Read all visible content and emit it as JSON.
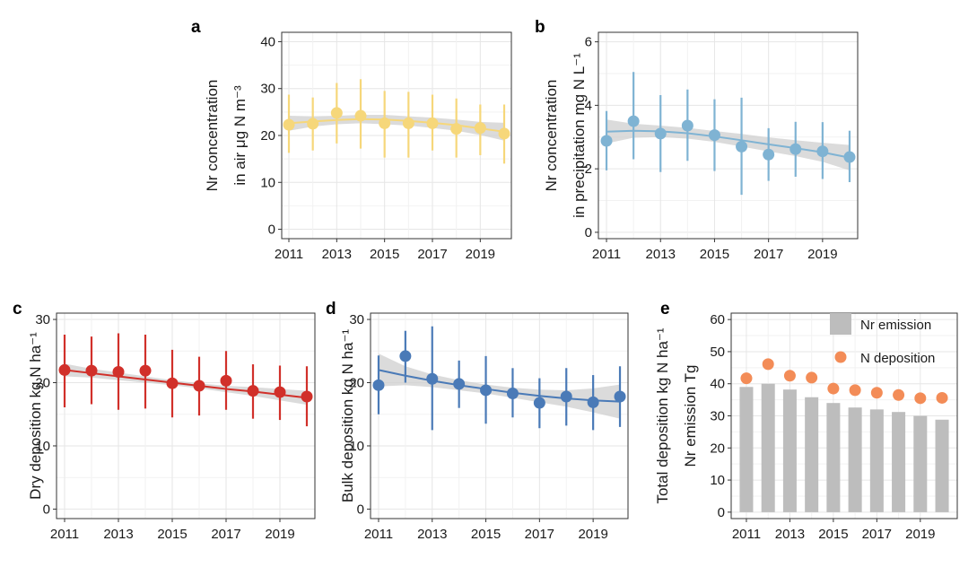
{
  "chart_data": [
    {
      "id": "a",
      "type": "scatter",
      "panel_label": "a",
      "ylabel_lines": [
        "Nr concentration",
        "in air   μg N m⁻³"
      ],
      "ylim": [
        -2,
        42
      ],
      "yticks": [
        0,
        10,
        20,
        30,
        40
      ],
      "x_ticks": [
        2011,
        2013,
        2015,
        2017,
        2019
      ],
      "xlim": [
        2010.7,
        2020.3
      ],
      "grid": true,
      "color": "#f6d77a",
      "band_color": "#cfcfcf",
      "x": [
        2011,
        2012,
        2013,
        2014,
        2015,
        2016,
        2017,
        2018,
        2019,
        2020
      ],
      "y": [
        22.3,
        22.5,
        24.8,
        24.2,
        22.6,
        22.6,
        22.6,
        21.4,
        21.6,
        20.4
      ],
      "err_low": [
        16.3,
        16.8,
        18.3,
        17.2,
        15.3,
        15.3,
        16.8,
        15.3,
        15.8,
        14.0
      ],
      "err_high": [
        28.7,
        28.1,
        31.2,
        32.0,
        29.5,
        29.3,
        28.7,
        27.9,
        26.6,
        26.6
      ],
      "fit": [
        22.6,
        23.0,
        23.3,
        23.5,
        23.4,
        23.1,
        22.7,
        22.2,
        21.5,
        20.8
      ],
      "fit_low": [
        21.0,
        21.9,
        22.4,
        22.6,
        22.4,
        22.1,
        21.6,
        21.0,
        20.1,
        18.9
      ],
      "fit_high": [
        24.2,
        24.1,
        24.2,
        24.4,
        24.4,
        24.1,
        23.8,
        23.4,
        22.9,
        22.7
      ]
    },
    {
      "id": "b",
      "type": "scatter",
      "panel_label": "b",
      "ylabel_lines": [
        "Nr concentration",
        "in precipitation   mg N L⁻¹"
      ],
      "ylim": [
        -0.2,
        6.3
      ],
      "yticks": [
        0,
        2,
        4,
        6
      ],
      "x_ticks": [
        2011,
        2013,
        2015,
        2017,
        2019
      ],
      "xlim": [
        2010.7,
        2020.3
      ],
      "grid": true,
      "color": "#7fb3d3",
      "band_color": "#cfcfcf",
      "x": [
        2011,
        2012,
        2013,
        2014,
        2015,
        2016,
        2017,
        2018,
        2019,
        2020
      ],
      "y": [
        2.88,
        3.5,
        3.11,
        3.36,
        3.06,
        2.7,
        2.45,
        2.62,
        2.55,
        2.37
      ],
      "err_low": [
        1.95,
        2.3,
        1.9,
        2.25,
        1.93,
        1.18,
        1.62,
        1.75,
        1.68,
        1.58
      ],
      "err_high": [
        3.82,
        5.05,
        4.32,
        4.5,
        4.19,
        4.24,
        3.28,
        3.48,
        3.47,
        3.2
      ],
      "fit": [
        3.17,
        3.2,
        3.18,
        3.12,
        3.02,
        2.9,
        2.77,
        2.65,
        2.52,
        2.35
      ],
      "fit_low": [
        2.8,
        2.98,
        3.0,
        2.95,
        2.85,
        2.7,
        2.55,
        2.4,
        2.22,
        1.95
      ],
      "fit_high": [
        3.55,
        3.42,
        3.36,
        3.29,
        3.19,
        3.1,
        2.99,
        2.9,
        2.82,
        2.75
      ]
    },
    {
      "id": "c",
      "type": "scatter",
      "panel_label": "c",
      "ylabel_lines": [
        "Dry deposition  kg N ha⁻¹"
      ],
      "ylim": [
        -1.5,
        31
      ],
      "yticks": [
        0,
        10,
        20,
        30
      ],
      "x_ticks": [
        2011,
        2013,
        2015,
        2017,
        2019
      ],
      "xlim": [
        2010.7,
        2020.3
      ],
      "grid": true,
      "color": "#d1302a",
      "band_color": "#cfcfcf",
      "x": [
        2011,
        2012,
        2013,
        2014,
        2015,
        2016,
        2017,
        2018,
        2019,
        2020
      ],
      "y": [
        22.0,
        21.9,
        21.7,
        21.9,
        19.9,
        19.5,
        20.3,
        18.7,
        18.5,
        17.8
      ],
      "err_low": [
        16.1,
        16.6,
        15.7,
        15.9,
        14.5,
        14.8,
        15.7,
        14.3,
        14.1,
        13.1
      ],
      "err_high": [
        27.6,
        27.3,
        27.8,
        27.6,
        25.2,
        24.1,
        25.0,
        22.9,
        22.7,
        22.6
      ],
      "fit": [
        22.0,
        21.5,
        21.0,
        20.5,
        20.0,
        19.5,
        19.0,
        18.6,
        18.1,
        17.6
      ],
      "fit_low": [
        21.0,
        20.8,
        20.4,
        20.0,
        19.6,
        19.1,
        18.5,
        17.9,
        17.2,
        16.5
      ],
      "fit_high": [
        23.0,
        22.2,
        21.6,
        21.0,
        20.4,
        19.9,
        19.5,
        19.3,
        19.0,
        18.7
      ]
    },
    {
      "id": "d",
      "type": "scatter",
      "panel_label": "d",
      "ylabel_lines": [
        "Bulk deposition  kg N ha⁻¹"
      ],
      "ylim": [
        -1.5,
        31
      ],
      "yticks": [
        0,
        10,
        20,
        30
      ],
      "x_ticks": [
        2011,
        2013,
        2015,
        2017,
        2019
      ],
      "xlim": [
        2010.7,
        2020.3
      ],
      "grid": true,
      "color": "#4a7ab7",
      "band_color": "#cfcfcf",
      "x": [
        2011,
        2012,
        2013,
        2014,
        2015,
        2016,
        2017,
        2018,
        2019,
        2020
      ],
      "y": [
        19.6,
        24.2,
        20.6,
        19.8,
        18.8,
        18.3,
        16.8,
        17.8,
        16.9,
        17.8
      ],
      "err_low": [
        15.0,
        20.0,
        12.5,
        16.0,
        13.5,
        14.5,
        12.8,
        13.2,
        12.5,
        13.0
      ],
      "err_high": [
        24.3,
        28.2,
        28.9,
        23.5,
        24.2,
        22.3,
        20.7,
        22.3,
        21.2,
        22.6
      ],
      "fit": [
        22.0,
        21.1,
        20.3,
        19.6,
        19.0,
        18.4,
        17.9,
        17.5,
        17.2,
        17.0
      ],
      "fit_low": [
        19.4,
        19.6,
        19.3,
        18.8,
        18.3,
        17.6,
        16.9,
        16.2,
        15.3,
        14.3
      ],
      "fit_high": [
        24.6,
        22.6,
        21.3,
        20.4,
        19.7,
        19.2,
        18.9,
        18.8,
        19.1,
        19.7
      ]
    },
    {
      "id": "e",
      "type": "bar",
      "panel_label": "e",
      "ylabel_lines": [
        "Total deposition  kg N ha⁻¹",
        "Nr emission  Tg"
      ],
      "ylim": [
        -2,
        62
      ],
      "yticks": [
        0,
        10,
        20,
        30,
        40,
        50,
        60
      ],
      "x_ticks": [
        2011,
        2013,
        2015,
        2017,
        2019
      ],
      "xlim": [
        2010.3,
        2020.7
      ],
      "grid": true,
      "legend_position": "top-right",
      "x": [
        2011,
        2012,
        2013,
        2014,
        2015,
        2016,
        2017,
        2018,
        2019,
        2020
      ],
      "series": [
        {
          "name": "Nr emission",
          "kind": "bar",
          "color": "#bdbdbd",
          "values": [
            39.0,
            40.0,
            38.2,
            35.8,
            34.0,
            32.6,
            32.0,
            31.2,
            30.0,
            28.8
          ]
        },
        {
          "name": "N deposition",
          "kind": "point",
          "color": "#f38c57",
          "values": [
            41.7,
            46.1,
            42.5,
            41.9,
            38.5,
            38.0,
            37.2,
            36.5,
            35.5,
            35.6
          ]
        }
      ]
    }
  ]
}
